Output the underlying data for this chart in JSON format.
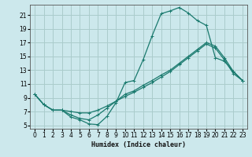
{
  "xlabel": "Humidex (Indice chaleur)",
  "background_color": "#cce8ec",
  "grid_color": "#aacccc",
  "line_color": "#1a7a6e",
  "xlim": [
    -0.5,
    23.5
  ],
  "ylim": [
    4.5,
    22.5
  ],
  "xticks": [
    0,
    1,
    2,
    3,
    4,
    5,
    6,
    7,
    8,
    9,
    10,
    11,
    12,
    13,
    14,
    15,
    16,
    17,
    18,
    19,
    20,
    21,
    22,
    23
  ],
  "yticks": [
    5,
    7,
    9,
    11,
    13,
    15,
    17,
    19,
    21
  ],
  "line1_x": [
    0,
    1,
    2,
    3,
    4,
    5,
    6,
    7,
    8,
    9,
    10,
    11,
    12,
    13,
    14,
    15,
    16,
    17,
    18,
    19,
    20,
    21,
    22,
    23
  ],
  "line1_y": [
    9.5,
    8.0,
    7.2,
    7.2,
    6.2,
    5.8,
    5.2,
    5.1,
    6.3,
    8.3,
    11.2,
    11.5,
    14.5,
    18.0,
    21.2,
    21.6,
    22.1,
    21.3,
    20.2,
    19.5,
    14.8,
    14.3,
    12.8,
    11.5
  ],
  "line2_x": [
    0,
    1,
    2,
    3,
    4,
    5,
    6,
    7,
    8,
    9,
    10,
    11,
    12,
    13,
    14,
    15,
    16,
    17,
    18,
    19,
    20,
    21,
    22,
    23
  ],
  "line2_y": [
    9.5,
    8.0,
    7.2,
    7.2,
    6.5,
    6.0,
    5.8,
    6.5,
    7.5,
    8.5,
    9.5,
    10.0,
    10.8,
    11.5,
    12.3,
    13.0,
    14.0,
    15.0,
    16.0,
    17.0,
    16.5,
    14.8,
    12.8,
    11.5
  ],
  "line3_x": [
    0,
    1,
    2,
    3,
    4,
    5,
    6,
    7,
    8,
    9,
    10,
    11,
    12,
    13,
    14,
    15,
    16,
    17,
    18,
    19,
    20,
    21,
    22,
    23
  ],
  "line3_y": [
    9.5,
    8.0,
    7.2,
    7.2,
    7.0,
    6.8,
    6.8,
    7.2,
    7.8,
    8.5,
    9.2,
    9.8,
    10.5,
    11.2,
    12.0,
    12.8,
    13.8,
    14.8,
    15.8,
    16.8,
    16.2,
    14.5,
    12.5,
    11.5
  ]
}
